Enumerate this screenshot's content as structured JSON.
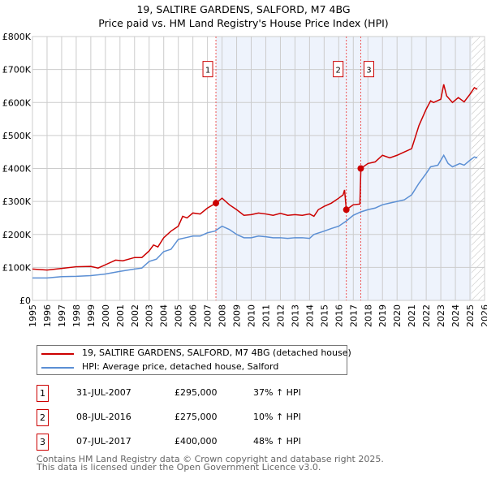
{
  "chart_data": {
    "type": "line",
    "title": "19, SALTIRE GARDENS, SALFORD, M7 4BG",
    "subtitle": "Price paid vs. HM Land Registry's House Price Index (HPI)",
    "xlim": [
      1995,
      2026
    ],
    "ylim": [
      0,
      800000
    ],
    "x_ticks": [
      "1995",
      "1996",
      "1997",
      "1998",
      "1999",
      "2000",
      "2001",
      "2002",
      "2003",
      "2004",
      "2005",
      "2006",
      "2007",
      "2008",
      "2009",
      "2010",
      "2011",
      "2012",
      "2013",
      "2014",
      "2015",
      "2016",
      "2017",
      "2018",
      "2019",
      "2020",
      "2021",
      "2022",
      "2023",
      "2024",
      "2025",
      "2026"
    ],
    "y_ticks": [
      {
        "v": 0,
        "l": "£0"
      },
      {
        "v": 100000,
        "l": "£100K"
      },
      {
        "v": 200000,
        "l": "£200K"
      },
      {
        "v": 300000,
        "l": "£300K"
      },
      {
        "v": 400000,
        "l": "£400K"
      },
      {
        "v": 500000,
        "l": "£500K"
      },
      {
        "v": 600000,
        "l": "£600K"
      },
      {
        "v": 700000,
        "l": "£700K"
      },
      {
        "v": 800000,
        "l": "£800K"
      }
    ],
    "grid": true,
    "shaded_range": [
      2007.58,
      2025.1
    ],
    "hatched_range": [
      2025.1,
      2026
    ],
    "series": [
      {
        "name": "19, SALTIRE GARDENS, SALFORD, M7 4BG (detached house)",
        "color": "#cc0000",
        "x": [
          1995,
          1996,
          1997,
          1998,
          1999,
          1999.5,
          2000,
          2000.7,
          2001.2,
          2002,
          2002.5,
          2003,
          2003.3,
          2003.6,
          2004,
          2004.5,
          2005,
          2005.3,
          2005.6,
          2006,
          2006.5,
          2007,
          2007.58,
          2008,
          2008.5,
          2009,
          2009.5,
          2010,
          2010.5,
          2011,
          2011.5,
          2012,
          2012.5,
          2013,
          2013.5,
          2014,
          2014.3,
          2014.6,
          2015,
          2015.5,
          2016,
          2016.3,
          2016.4,
          2016.52,
          2017,
          2017.45,
          2017.52,
          2018,
          2018.5,
          2019,
          2019.5,
          2020,
          2020.5,
          2021,
          2021.5,
          2022,
          2022.3,
          2022.5,
          2023,
          2023.2,
          2023.4,
          2023.8,
          2024.2,
          2024.6,
          2025,
          2025.3,
          2025.5
        ],
        "y": [
          95,
          92,
          97,
          102,
          103,
          98,
          108,
          122,
          120,
          130,
          130,
          150,
          168,
          162,
          190,
          210,
          225,
          255,
          250,
          265,
          262,
          280,
          295,
          310,
          290,
          275,
          258,
          260,
          265,
          262,
          258,
          264,
          258,
          260,
          258,
          262,
          255,
          275,
          285,
          295,
          310,
          320,
          335,
          275,
          290,
          292,
          400,
          415,
          420,
          440,
          432,
          440,
          450,
          460,
          530,
          580,
          605,
          600,
          610,
          655,
          620,
          600,
          615,
          602,
          625,
          645,
          640
        ]
      },
      {
        "name": "HPI: Average price, detached house, Salford",
        "color": "#5b8fd4",
        "x": [
          1995,
          1996,
          1997,
          1998,
          1999,
          2000,
          2001,
          2002,
          2002.5,
          2003,
          2003.5,
          2004,
          2004.5,
          2005,
          2005.5,
          2006,
          2006.5,
          2007,
          2007.5,
          2008,
          2008.5,
          2009,
          2009.5,
          2010,
          2010.5,
          2011,
          2011.5,
          2012,
          2012.5,
          2013,
          2013.5,
          2014,
          2014.3,
          2015,
          2015.5,
          2016,
          2016.5,
          2017,
          2017.5,
          2018,
          2018.5,
          2019,
          2019.5,
          2020,
          2020.5,
          2021,
          2021.5,
          2022,
          2022.3,
          2022.8,
          2023.2,
          2023.5,
          2023.8,
          2024.3,
          2024.6,
          2025,
          2025.3,
          2025.5
        ],
        "y": [
          68,
          68,
          72,
          73,
          75,
          80,
          88,
          95,
          98,
          118,
          125,
          148,
          155,
          185,
          190,
          195,
          195,
          205,
          210,
          225,
          215,
          200,
          190,
          190,
          195,
          193,
          190,
          190,
          188,
          190,
          190,
          188,
          200,
          210,
          218,
          225,
          240,
          258,
          268,
          275,
          280,
          290,
          295,
          300,
          305,
          320,
          355,
          385,
          405,
          410,
          440,
          415,
          405,
          415,
          410,
          425,
          435,
          432
        ]
      }
    ],
    "y_unit_multiplier": 1000,
    "sales": [
      {
        "label": "1",
        "x": 2007.58,
        "y": 295000,
        "date": "31-JUL-2007",
        "price": "£295,000",
        "hpi": "37% ↑ HPI"
      },
      {
        "label": "2",
        "x": 2016.52,
        "y": 275000,
        "date": "08-JUL-2016",
        "price": "£275,000",
        "hpi": "10% ↑ HPI"
      },
      {
        "label": "3",
        "x": 2017.51,
        "y": 400000,
        "date": "07-JUL-2017",
        "price": "£400,000",
        "hpi": "48% ↑ HPI"
      }
    ],
    "legend": "below"
  },
  "footer": {
    "line1": "Contains HM Land Registry data © Crown copyright and database right 2025.",
    "line2": "This data is licensed under the Open Government Licence v3.0."
  }
}
